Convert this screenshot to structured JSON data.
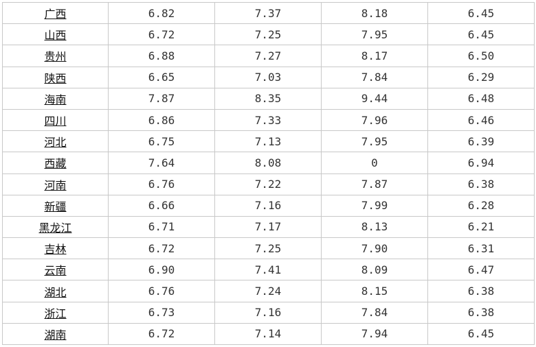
{
  "rows": [
    {
      "region": "广西",
      "v1": "6.82",
      "v2": "7.37",
      "v3": "8.18",
      "v4": "6.45"
    },
    {
      "region": "山西",
      "v1": "6.72",
      "v2": "7.25",
      "v3": "7.95",
      "v4": "6.45"
    },
    {
      "region": "贵州",
      "v1": "6.88",
      "v2": "7.27",
      "v3": "8.17",
      "v4": "6.50"
    },
    {
      "region": "陕西",
      "v1": "6.65",
      "v2": "7.03",
      "v3": "7.84",
      "v4": "6.29"
    },
    {
      "region": "海南",
      "v1": "7.87",
      "v2": "8.35",
      "v3": "9.44",
      "v4": "6.48"
    },
    {
      "region": "四川",
      "v1": "6.86",
      "v2": "7.33",
      "v3": "7.96",
      "v4": "6.46"
    },
    {
      "region": "河北",
      "v1": "6.75",
      "v2": "7.13",
      "v3": "7.95",
      "v4": "6.39"
    },
    {
      "region": "西藏",
      "v1": "7.64",
      "v2": "8.08",
      "v3": "0",
      "v4": "6.94"
    },
    {
      "region": "河南",
      "v1": "6.76",
      "v2": "7.22",
      "v3": "7.87",
      "v4": "6.38"
    },
    {
      "region": "新疆",
      "v1": "6.66",
      "v2": "7.16",
      "v3": "7.99",
      "v4": "6.28"
    },
    {
      "region": "黑龙江",
      "v1": "6.71",
      "v2": "7.17",
      "v3": "8.13",
      "v4": "6.21"
    },
    {
      "region": "吉林",
      "v1": "6.72",
      "v2": "7.25",
      "v3": "7.90",
      "v4": "6.31"
    },
    {
      "region": "云南",
      "v1": "6.90",
      "v2": "7.41",
      "v3": "8.09",
      "v4": "6.47"
    },
    {
      "region": "湖北",
      "v1": "6.76",
      "v2": "7.24",
      "v3": "8.15",
      "v4": "6.38"
    },
    {
      "region": "浙江",
      "v1": "6.73",
      "v2": "7.16",
      "v3": "7.84",
      "v4": "6.38"
    },
    {
      "region": "湖南",
      "v1": "6.72",
      "v2": "7.14",
      "v3": "7.94",
      "v4": "6.45"
    }
  ]
}
